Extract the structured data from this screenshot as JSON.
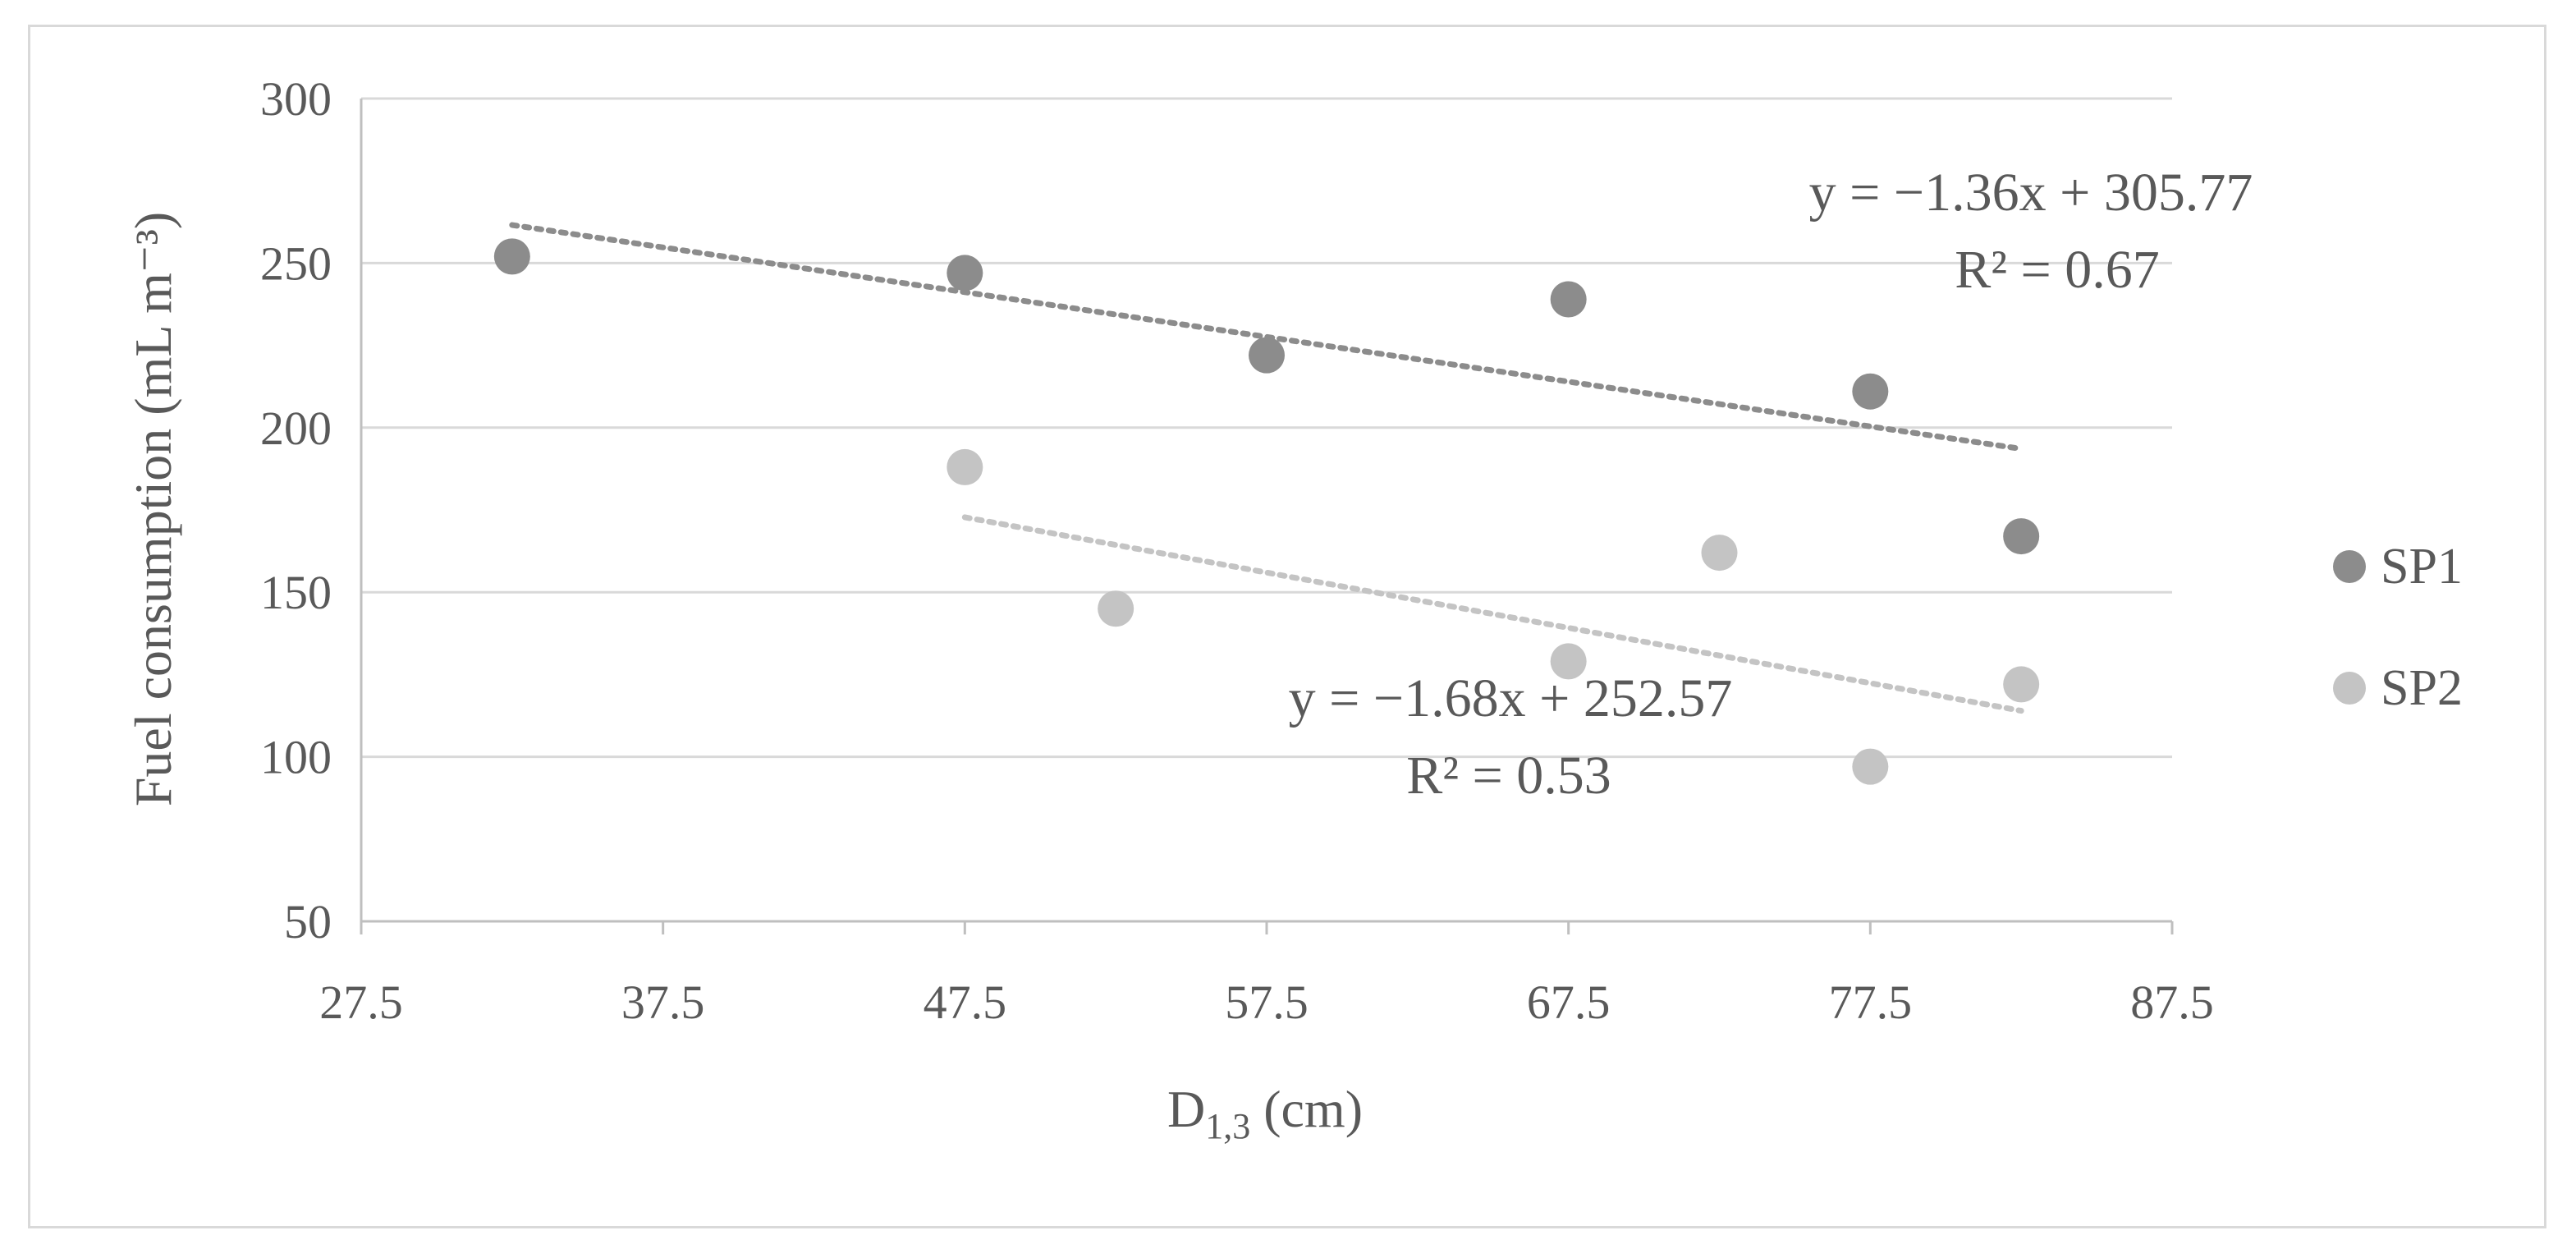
{
  "chart_data": {
    "type": "scatter",
    "title": "",
    "xlabel": {
      "main": "D",
      "sub": "1,3",
      "rest": " (cm)"
    },
    "ylabel": "Fuel consumption (mL m⁻³)",
    "xlim": [
      27.5,
      87.5
    ],
    "ylim": [
      50,
      300
    ],
    "xticks": [
      27.5,
      37.5,
      47.5,
      57.5,
      67.5,
      77.5,
      87.5
    ],
    "xtick_labels": [
      "27.5",
      "37.5",
      "47.5",
      "57.5",
      "67.5",
      "77.5",
      "87.5"
    ],
    "yticks": [
      50,
      100,
      150,
      200,
      250,
      300
    ],
    "ytick_labels": [
      "50",
      "100",
      "150",
      "200",
      "250",
      "300"
    ],
    "grid": "horizontal",
    "legend_position": "right",
    "series": [
      {
        "name": "SP1",
        "color": "#8c8c8c",
        "points": [
          {
            "x": 32.5,
            "y": 252
          },
          {
            "x": 47.5,
            "y": 247
          },
          {
            "x": 57.5,
            "y": 222
          },
          {
            "x": 67.5,
            "y": 239
          },
          {
            "x": 77.5,
            "y": 211
          },
          {
            "x": 82.5,
            "y": 167
          }
        ],
        "trendline": {
          "slope": -1.36,
          "intercept": 305.77,
          "x_range": [
            32.5,
            82.5
          ],
          "color": "#8c8c8c"
        },
        "equation": "y = −1.36x + 305.77",
        "r2": "R² = 0.67"
      },
      {
        "name": "SP2",
        "color": "#c4c4c4",
        "points": [
          {
            "x": 47.5,
            "y": 188
          },
          {
            "x": 52.5,
            "y": 145
          },
          {
            "x": 67.5,
            "y": 129
          },
          {
            "x": 72.5,
            "y": 162
          },
          {
            "x": 77.5,
            "y": 97
          },
          {
            "x": 82.5,
            "y": 122
          }
        ],
        "trendline": {
          "slope": -1.68,
          "intercept": 252.57,
          "x_range": [
            47.5,
            82.5
          ],
          "color": "#c4c4c4"
        },
        "equation": "y = −1.68x + 252.57",
        "r2": "R² = 0.53"
      }
    ]
  }
}
